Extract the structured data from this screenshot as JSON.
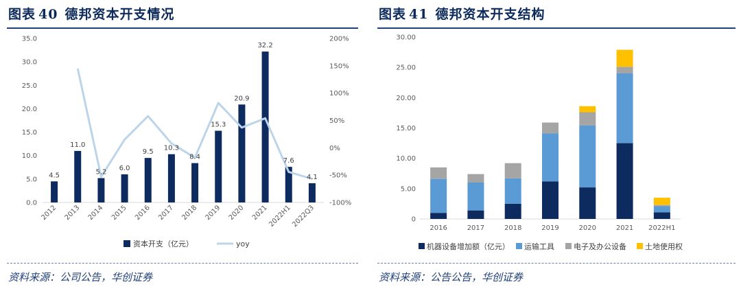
{
  "left": {
    "fig_label": "图表",
    "fig_number": "40",
    "title": "德邦资本开支情况",
    "source": "资料来源：公司公告，华创证券"
  },
  "right": {
    "fig_label": "图表",
    "fig_number": "41",
    "title": "德邦资本开支结构",
    "source": "资料来源：公告公告，华创证券"
  },
  "chart_data": [
    {
      "type": "bar",
      "categories": [
        "2012",
        "2013",
        "2014",
        "2015",
        "2016",
        "2017",
        "2018",
        "2019",
        "2020",
        "2021",
        "2022H1",
        "2022Q3"
      ],
      "series": [
        {
          "name": "资本开支（亿元）",
          "type": "bar",
          "axis": "left",
          "color": "#0d2b5e",
          "values": [
            4.5,
            11.0,
            5.2,
            6.0,
            9.5,
            10.3,
            8.4,
            15.3,
            20.9,
            32.2,
            7.6,
            4.1
          ],
          "labels": [
            "4.5",
            "11.0",
            "5.2",
            "6.0",
            "9.5",
            "10.3",
            "8.4",
            "15.3",
            "20.9",
            "32.2",
            "7.6",
            "4.1"
          ]
        },
        {
          "name": "yoy",
          "type": "line",
          "axis": "right",
          "color": "#bcd4e9",
          "values": [
            null,
            145,
            -53,
            15,
            58,
            8,
            -18,
            82,
            37,
            54,
            -44,
            -57
          ]
        }
      ],
      "y_left": {
        "min": 0,
        "max": 35,
        "step": 5,
        "ticks": [
          "0.0",
          "5.0",
          "10.0",
          "15.0",
          "20.0",
          "25.0",
          "30.0",
          "35.0"
        ]
      },
      "y_right": {
        "min": -100,
        "max": 200,
        "step": 50,
        "ticks": [
          "-100%",
          "-50%",
          "0%",
          "50%",
          "100%",
          "150%",
          "200%"
        ]
      },
      "grid": false,
      "legend": "bottom",
      "legend_items": [
        "资本开支（亿元）",
        "yoy"
      ]
    },
    {
      "type": "bar",
      "stacked": true,
      "categories": [
        "2016",
        "2017",
        "2018",
        "2019",
        "2020",
        "2021",
        "2022H1"
      ],
      "series": [
        {
          "name": "机器设备增加额（亿元）",
          "color": "#0d2b5e",
          "values": [
            1.0,
            1.4,
            2.5,
            6.2,
            5.2,
            12.5,
            1.1
          ]
        },
        {
          "name": "运输工具",
          "color": "#5b9bd5",
          "values": [
            5.6,
            4.6,
            4.2,
            7.9,
            10.2,
            11.5,
            1.0
          ]
        },
        {
          "name": "电子及办公设备",
          "color": "#a5a5a5",
          "values": [
            1.9,
            1.4,
            2.5,
            1.8,
            2.2,
            1.1,
            0.2
          ]
        },
        {
          "name": "土地使用权",
          "color": "#ffc000",
          "values": [
            0,
            0,
            0,
            0,
            1.0,
            2.8,
            1.2
          ]
        }
      ],
      "y": {
        "min": 0,
        "max": 30,
        "step": 5,
        "ticks": [
          "0",
          "5.00",
          "10.00",
          "15.00",
          "20.00",
          "25.00",
          "30.00"
        ]
      },
      "grid": false,
      "legend": "bottom"
    }
  ]
}
